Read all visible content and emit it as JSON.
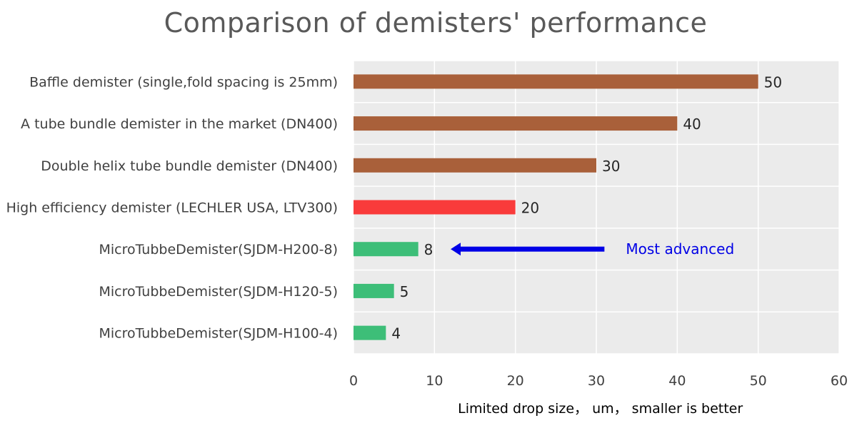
{
  "chart_data": {
    "type": "bar",
    "orientation": "horizontal",
    "title": "Comparison  of demisters' performance",
    "xlabel": "Limited drop size， um， smaller is better",
    "ylabel": "",
    "xlim": [
      0,
      60
    ],
    "xticks": [
      0,
      10,
      20,
      30,
      40,
      50,
      60
    ],
    "grid": true,
    "categories": [
      "Baffle demister (single,fold spacing is 25mm)",
      "A tube bundle demister in the market (DN400)",
      "Double helix tube bundle demister (DN400)",
      "High efficiency  demister (LECHLER USA, LTV300)",
      "MicroTubbeDemister(SJDM-H200-8)",
      "MicroTubbeDemister(SJDM-H120-5)",
      "MicroTubbeDemister(SJDM-H100-4)"
    ],
    "values": [
      50,
      40,
      30,
      20,
      8,
      5,
      4
    ],
    "data_labels": [
      "50",
      "40",
      "30",
      "20",
      "8",
      "5",
      "4"
    ],
    "bar_colors": [
      "#A9603A",
      "#A9603A",
      "#A9603A",
      "#F93B3B",
      "#3DBE78",
      "#3DBE78",
      "#3DBE78"
    ],
    "plot_background": "#EBEBEB",
    "grid_color": "#FFFFFF",
    "annotation": {
      "text": "Most advanced",
      "arrow": {
        "from_x": 31,
        "to_x": 12,
        "category_index": 4
      },
      "color": "#0000E6"
    }
  }
}
